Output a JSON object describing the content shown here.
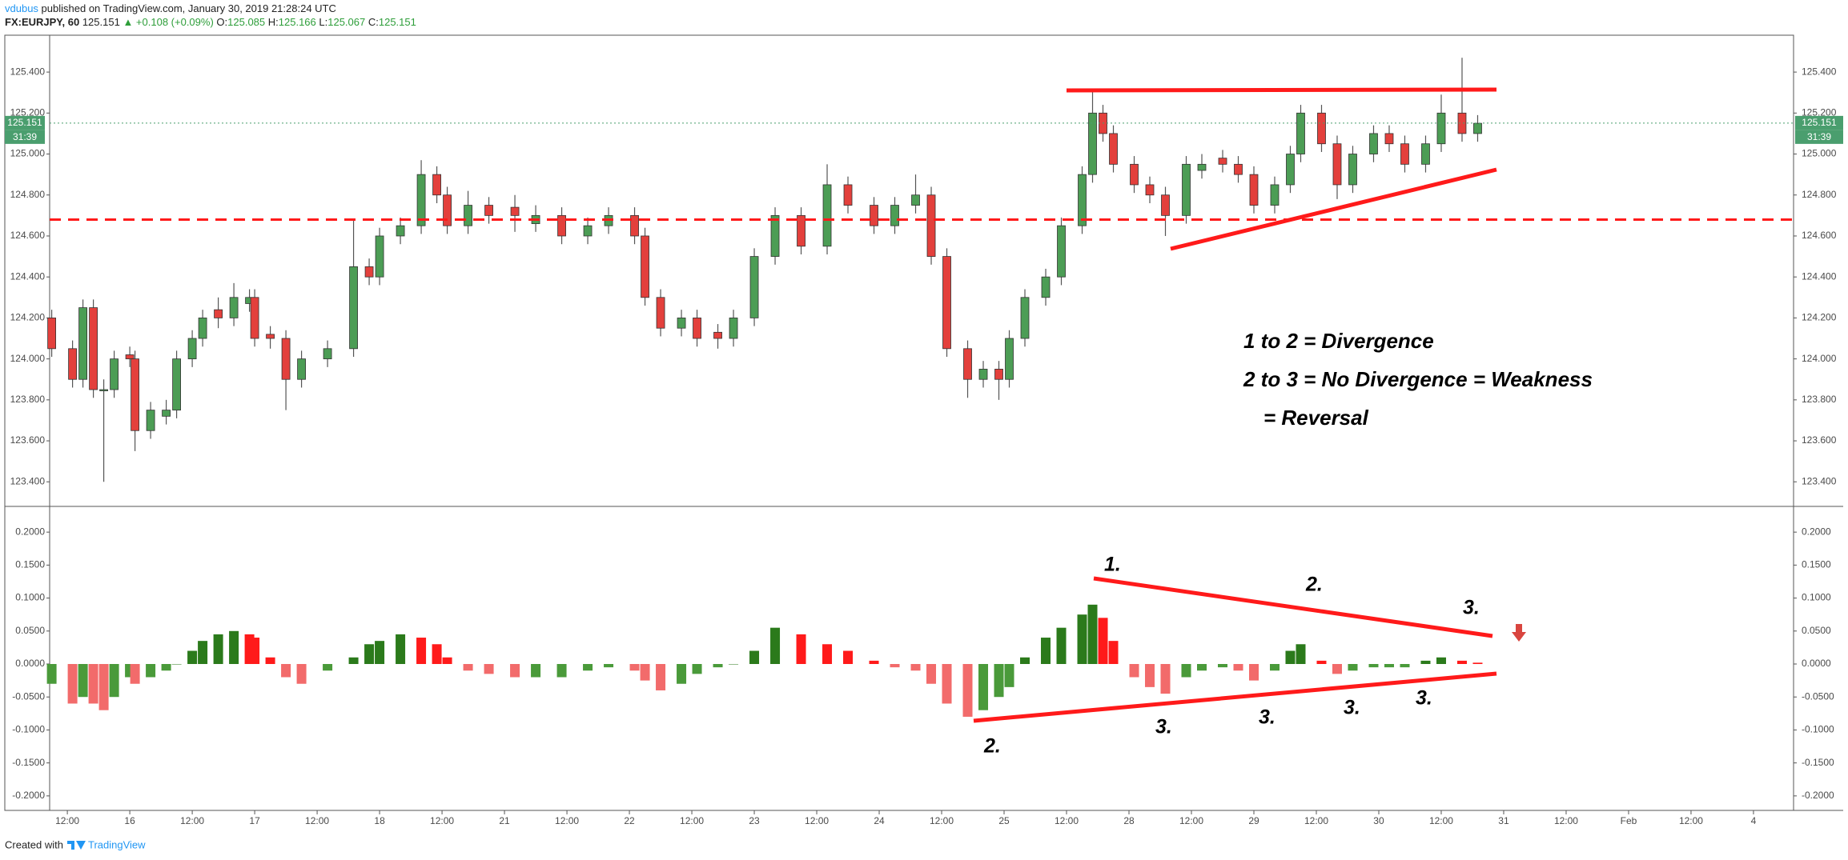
{
  "header": {
    "author": "vdubus",
    "published": "published on TradingView.com, January 30, 2019 21:28:24 UTC",
    "symbol": "FX:EURJPY, 60",
    "price": "125.151",
    "change": "▲ +0.108 (+0.09%)",
    "ohlc": [
      {
        "label": "O:",
        "value": "125.085"
      },
      {
        "label": "H:",
        "value": "125.166"
      },
      {
        "label": "L:",
        "value": "125.067"
      },
      {
        "label": "C:",
        "value": "125.151"
      }
    ]
  },
  "annotations": [
    "1 to 2 = Divergence",
    "2 to 3 = No Divergence = Weakness",
    "= Reversal",
    "1.",
    "2.",
    "3.",
    "2.",
    "3.",
    "3.",
    "3.",
    "3."
  ],
  "footer": {
    "created": "Created with",
    "brand": "TradingView"
  },
  "chart_data": [
    {
      "type": "candlestick",
      "xlim": [
        -15.4,
        319.7
      ],
      "ylim": [
        123.28,
        125.58
      ],
      "yticks": [
        {
          "value": 123.4,
          "label": "123.400"
        },
        {
          "value": 123.6,
          "label": "123.600"
        },
        {
          "value": 123.8,
          "label": "123.800"
        },
        {
          "value": 124.0,
          "label": "124.000"
        },
        {
          "value": 124.2,
          "label": "124.200"
        },
        {
          "value": 124.4,
          "label": "124.400"
        },
        {
          "value": 124.6,
          "label": "124.600"
        },
        {
          "value": 124.8,
          "label": "124.800"
        },
        {
          "value": 125.0,
          "label": "125.000"
        },
        {
          "value": 125.2,
          "label": "125.200"
        },
        {
          "value": 125.4,
          "label": "125.400"
        }
      ],
      "up_color": "#4c9d55",
      "down_color": "#e3403c",
      "wick_color": "#555555",
      "last_price": 125.151,
      "last_price_color": "#4a9e6e",
      "countdown": "31:39",
      "x": [
        -15,
        -11,
        -9,
        -7,
        -5,
        -3,
        0,
        1,
        4,
        7,
        9,
        12,
        14,
        17,
        20,
        23,
        24,
        27,
        30,
        33,
        38,
        43,
        46,
        48,
        52,
        56,
        59,
        61,
        65,
        69,
        74,
        78,
        83,
        88,
        92,
        97,
        99,
        102,
        106,
        109,
        113,
        116,
        120,
        124,
        129,
        134,
        138,
        143,
        147,
        151,
        154,
        157,
        161,
        164,
        167,
        169,
        172,
        176,
        179,
        183,
        185,
        187,
        189,
        193,
        196,
        199,
        203,
        206,
        210,
        213,
        216,
        220,
        223,
        225,
        229,
        232,
        235,
        239,
        242,
        245,
        249,
        252,
        256,
        259
      ],
      "open": [
        124.2,
        124.05,
        123.9,
        124.25,
        123.85,
        123.85,
        124.02,
        124.0,
        123.65,
        123.72,
        123.75,
        124.0,
        124.1,
        124.24,
        124.2,
        124.27,
        124.3,
        124.12,
        124.1,
        123.9,
        124.0,
        124.05,
        124.45,
        124.4,
        124.6,
        124.65,
        124.9,
        124.8,
        124.65,
        124.75,
        124.74,
        124.66,
        124.7,
        124.6,
        124.65,
        124.7,
        124.6,
        124.3,
        124.15,
        124.2,
        124.13,
        124.1,
        124.2,
        124.5,
        124.7,
        124.55,
        124.85,
        124.75,
        124.65,
        124.75,
        124.8,
        124.5,
        124.05,
        123.9,
        123.95,
        123.9,
        124.1,
        124.3,
        124.4,
        124.65,
        124.9,
        125.2,
        125.1,
        124.95,
        124.85,
        124.8,
        124.7,
        124.92,
        124.98,
        124.95,
        124.9,
        124.75,
        124.85,
        125.0,
        125.2,
        125.05,
        124.85,
        125.0,
        125.1,
        125.05,
        124.95,
        125.05,
        125.2,
        125.1
      ],
      "high": [
        124.24,
        124.09,
        124.29,
        124.29,
        123.9,
        124.04,
        124.06,
        124.04,
        123.79,
        123.8,
        124.04,
        124.14,
        124.24,
        124.3,
        124.37,
        124.34,
        124.34,
        124.16,
        124.14,
        124.04,
        124.09,
        124.68,
        124.49,
        124.64,
        124.69,
        124.97,
        124.94,
        124.84,
        124.82,
        124.79,
        124.8,
        124.75,
        124.74,
        124.69,
        124.74,
        124.74,
        124.64,
        124.34,
        124.24,
        124.24,
        124.17,
        124.24,
        124.54,
        124.74,
        124.74,
        124.95,
        124.89,
        124.79,
        124.79,
        124.9,
        124.84,
        124.54,
        124.09,
        123.99,
        123.99,
        124.14,
        124.34,
        124.44,
        124.69,
        124.94,
        125.32,
        125.24,
        125.14,
        124.99,
        124.89,
        124.84,
        124.99,
        125.0,
        125.02,
        124.99,
        124.94,
        124.89,
        125.04,
        125.24,
        125.24,
        125.09,
        125.04,
        125.14,
        125.14,
        125.09,
        125.09,
        125.29,
        125.47,
        125.19
      ],
      "low": [
        124.01,
        123.86,
        123.86,
        123.81,
        123.4,
        123.81,
        123.96,
        123.55,
        123.61,
        123.68,
        123.71,
        123.96,
        124.06,
        124.15,
        124.16,
        124.23,
        124.06,
        124.05,
        123.75,
        123.86,
        123.96,
        124.01,
        124.36,
        124.36,
        124.56,
        124.61,
        124.76,
        124.61,
        124.61,
        124.66,
        124.62,
        124.62,
        124.56,
        124.56,
        124.61,
        124.56,
        124.26,
        124.11,
        124.11,
        124.06,
        124.05,
        124.06,
        124.16,
        124.46,
        124.51,
        124.51,
        124.71,
        124.61,
        124.61,
        124.71,
        124.46,
        124.01,
        123.81,
        123.86,
        123.8,
        123.86,
        124.06,
        124.26,
        124.36,
        124.61,
        124.86,
        125.06,
        124.91,
        124.81,
        124.76,
        124.6,
        124.66,
        124.88,
        124.91,
        124.86,
        124.71,
        124.71,
        124.81,
        124.96,
        125.01,
        124.78,
        124.81,
        124.96,
        125.01,
        124.91,
        124.91,
        125.01,
        125.06,
        125.06
      ],
      "close": [
        124.05,
        123.9,
        124.25,
        123.85,
        123.85,
        124.0,
        124.0,
        123.65,
        123.75,
        123.75,
        124.0,
        124.1,
        124.2,
        124.2,
        124.3,
        124.3,
        124.1,
        124.1,
        123.9,
        124.0,
        124.05,
        124.45,
        124.4,
        124.6,
        124.65,
        124.9,
        124.8,
        124.65,
        124.75,
        124.7,
        124.7,
        124.7,
        124.6,
        124.65,
        124.7,
        124.6,
        124.3,
        124.15,
        124.2,
        124.1,
        124.1,
        124.2,
        124.5,
        124.7,
        124.55,
        124.85,
        124.75,
        124.65,
        124.75,
        124.8,
        124.5,
        124.05,
        123.9,
        123.95,
        123.9,
        124.1,
        124.3,
        124.4,
        124.65,
        124.9,
        125.2,
        125.1,
        124.95,
        124.85,
        124.8,
        124.7,
        124.95,
        124.95,
        124.95,
        124.9,
        124.75,
        124.85,
        125.0,
        125.2,
        125.05,
        124.85,
        125.0,
        125.1,
        125.05,
        124.95,
        125.05,
        125.2,
        125.1,
        125.15
      ]
    },
    {
      "type": "bar",
      "xlim": [
        -15.4,
        319.7
      ],
      "ylim": [
        -0.222,
        0.239
      ],
      "yticks": [
        {
          "value": -0.2,
          "label": "-0.2000"
        },
        {
          "value": -0.15,
          "label": "-0.1500"
        },
        {
          "value": -0.1,
          "label": "-0.1000"
        },
        {
          "value": -0.05,
          "label": "-0.0500"
        },
        {
          "value": 0,
          "label": "0.0000"
        },
        {
          "value": 0.05,
          "label": "0.0500"
        },
        {
          "value": 0.1,
          "label": "0.1000"
        },
        {
          "value": 0.15,
          "label": "0.1500"
        },
        {
          "value": 0.2,
          "label": "0.2000"
        }
      ],
      "xticks": [
        {
          "value": -12,
          "label": "12:00"
        },
        {
          "value": 0,
          "label": "16"
        },
        {
          "value": 12,
          "label": "12:00"
        },
        {
          "value": 24,
          "label": "17"
        },
        {
          "value": 36,
          "label": "12:00"
        },
        {
          "value": 48,
          "label": "18"
        },
        {
          "value": 60,
          "label": "12:00"
        },
        {
          "value": 72,
          "label": "21"
        },
        {
          "value": 84,
          "label": "12:00"
        },
        {
          "value": 96,
          "label": "22"
        },
        {
          "value": 108,
          "label": "12:00"
        },
        {
          "value": 120,
          "label": "23"
        },
        {
          "value": 132,
          "label": "12:00"
        },
        {
          "value": 144,
          "label": "24"
        },
        {
          "value": 156,
          "label": "12:00"
        },
        {
          "value": 168,
          "label": "25"
        },
        {
          "value": 180,
          "label": "12:00"
        },
        {
          "value": 192,
          "label": "28"
        },
        {
          "value": 204,
          "label": "12:00"
        },
        {
          "value": 216,
          "label": "29"
        },
        {
          "value": 228,
          "label": "12:00"
        },
        {
          "value": 240,
          "label": "30"
        },
        {
          "value": 252,
          "label": "12:00"
        },
        {
          "value": 264,
          "label": "31"
        },
        {
          "value": 276,
          "label": "12:00"
        },
        {
          "value": 288,
          "label": "Feb"
        },
        {
          "value": 300,
          "label": "12:00"
        },
        {
          "value": 312,
          "label": "4"
        }
      ],
      "colors": {
        "rise_above": "#2b7a1b",
        "fall_above": "#ff1a1a",
        "fall_below": "#f26b6b",
        "rise_below": "#4a9a3a"
      },
      "x": [
        -15,
        -11,
        -9,
        -7,
        -5,
        -3,
        0,
        1,
        4,
        7,
        9,
        12,
        14,
        17,
        20,
        23,
        24,
        27,
        30,
        33,
        38,
        43,
        46,
        48,
        52,
        56,
        59,
        61,
        65,
        69,
        74,
        78,
        83,
        88,
        92,
        97,
        99,
        102,
        106,
        109,
        113,
        116,
        120,
        124,
        129,
        134,
        138,
        143,
        147,
        151,
        154,
        157,
        161,
        164,
        167,
        169,
        172,
        176,
        179,
        183,
        185,
        187,
        189,
        193,
        196,
        199,
        203,
        206,
        210,
        213,
        216,
        220,
        223,
        225,
        229,
        232,
        235,
        239,
        242,
        245,
        249,
        252,
        256,
        259
      ],
      "values": [
        -0.03,
        -0.06,
        -0.05,
        -0.06,
        -0.07,
        -0.05,
        -0.02,
        -0.03,
        -0.02,
        -0.01,
        0.0,
        0.02,
        0.035,
        0.045,
        0.05,
        0.045,
        0.04,
        0.01,
        -0.02,
        -0.03,
        -0.01,
        0.01,
        0.03,
        0.035,
        0.045,
        0.04,
        0.03,
        0.01,
        -0.01,
        -0.015,
        -0.02,
        -0.02,
        -0.02,
        -0.01,
        -0.005,
        -0.01,
        -0.025,
        -0.04,
        -0.03,
        -0.015,
        -0.005,
        0.0,
        0.02,
        0.055,
        0.045,
        0.03,
        0.02,
        0.005,
        -0.005,
        -0.01,
        -0.03,
        -0.06,
        -0.08,
        -0.07,
        -0.05,
        -0.035,
        0.01,
        0.04,
        0.055,
        0.075,
        0.09,
        0.07,
        0.035,
        -0.02,
        -0.035,
        -0.045,
        -0.02,
        -0.01,
        -0.005,
        -0.01,
        -0.025,
        -0.01,
        0.02,
        0.03,
        0.005,
        -0.015,
        -0.01,
        -0.005,
        -0.005,
        -0.005,
        0.005,
        0.01,
        0.005,
        0.002
      ]
    }
  ]
}
